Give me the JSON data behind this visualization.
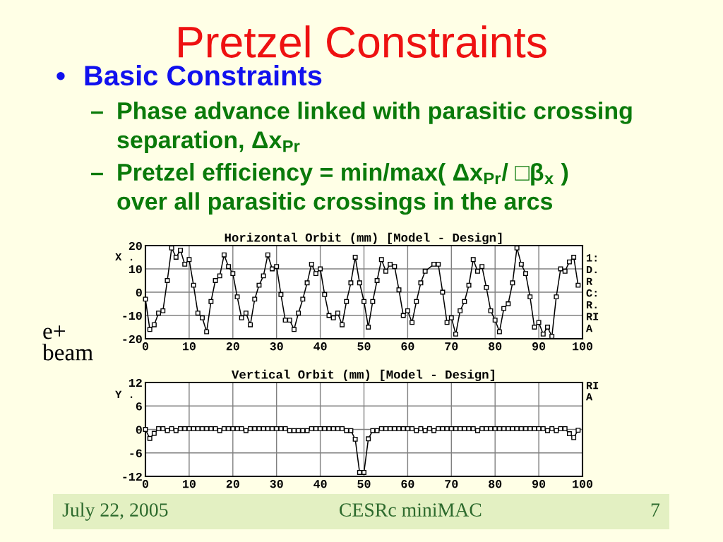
{
  "chart_data": [
    {
      "type": "other",
      "title": "Pretzel Constraints",
      "color": "#ee1111",
      "annotations": [
        "•",
        "Basic Constraints",
        "–",
        "Phase advance linked with parasitic crossing\nseparation, Δx$_{Pr}$",
        "–",
        "Pretzel efficiency = min/max( Δx$_{Pr}$/ □β$_{x}$ )\nover all parasitic crossings in the arcs",
        "e+\nbeam"
      ],
      "colors": [
        "#1111ee",
        "#1111ee",
        "#0a7a0a",
        "#0a7a0a",
        "#0a7a0a",
        "#0a7a0a",
        "#000000"
      ]
    },
    {
      "type": "line",
      "title": "Horizontal Orbit (mm) [Model - Design]",
      "ylabel": "X .",
      "color": "#000000",
      "marker": "square",
      "grid": true,
      "x": [
        0,
        1,
        2,
        3,
        4,
        5,
        6,
        7,
        8,
        9,
        10,
        11,
        12,
        13,
        14,
        15,
        16,
        17,
        18,
        19,
        20,
        21,
        22,
        23,
        24,
        25,
        26,
        27,
        28,
        29,
        30,
        31,
        32,
        33,
        34,
        35,
        36,
        37,
        38,
        39,
        40,
        41,
        42,
        43,
        44,
        45,
        46,
        47,
        48,
        49,
        50,
        51,
        52,
        53,
        54,
        55,
        56,
        57,
        58,
        59,
        60,
        61,
        62,
        63,
        64,
        66,
        67,
        68,
        69,
        70,
        71,
        72,
        73,
        74,
        75,
        76,
        77,
        78,
        79,
        80,
        81,
        82,
        83,
        84,
        85,
        86,
        87,
        88,
        89,
        90,
        91,
        92,
        93,
        94,
        95,
        96,
        97,
        98,
        99
      ],
      "values": [
        -3,
        -16,
        -14,
        -9,
        -8,
        5,
        19,
        15,
        18,
        12,
        14,
        3,
        -9,
        -11,
        -17,
        -4,
        5,
        7,
        16,
        11,
        8,
        -2,
        -11,
        -9,
        -14,
        -3,
        3,
        7,
        16,
        10,
        11,
        -1,
        -12,
        -12,
        -16,
        -9,
        -3,
        4,
        12,
        8,
        10,
        -1,
        -10,
        -11,
        -9,
        -14,
        -4,
        4,
        15,
        4,
        -4,
        -15,
        -4,
        5,
        14,
        9,
        12,
        11,
        1,
        -10,
        -8,
        -13,
        -4,
        4,
        9,
        12,
        12,
        0,
        -13,
        -11,
        -18,
        -8,
        -4,
        3,
        14,
        9,
        11,
        2,
        -8,
        -12,
        -17,
        -7,
        -5,
        4,
        19,
        12,
        8,
        -2,
        -15,
        -13,
        -18,
        -15,
        -19,
        -2,
        10,
        9,
        13,
        15,
        3
      ],
      "xlim": [
        0,
        100
      ],
      "xticks": [
        0,
        10,
        20,
        30,
        40,
        50,
        60,
        70,
        80,
        90,
        100
      ],
      "ylim": [
        -20,
        20
      ],
      "yticks": [
        -20,
        -10,
        0,
        10,
        20
      ],
      "annotations": [
        "1:",
        "D.",
        "R",
        "C:",
        "R.",
        "RI",
        "A"
      ]
    },
    {
      "type": "line",
      "title": "Vertical Orbit (mm) [Model - Design]",
      "ylabel": "Y .",
      "color": "#000000",
      "marker": "square",
      "grid": true,
      "x": [
        0,
        1,
        2,
        3,
        4,
        5,
        6,
        7,
        8,
        9,
        10,
        11,
        12,
        13,
        14,
        15,
        16,
        17,
        18,
        19,
        20,
        21,
        22,
        23,
        24,
        25,
        26,
        27,
        28,
        29,
        30,
        31,
        32,
        33,
        34,
        35,
        36,
        37,
        38,
        39,
        40,
        41,
        42,
        43,
        44,
        45,
        46,
        47,
        48,
        49,
        50,
        51,
        52,
        53,
        54,
        55,
        56,
        57,
        58,
        59,
        60,
        61,
        62,
        63,
        64,
        65,
        66,
        67,
        68,
        69,
        70,
        71,
        72,
        73,
        74,
        75,
        76,
        77,
        78,
        79,
        80,
        81,
        82,
        83,
        84,
        85,
        86,
        87,
        88,
        89,
        90,
        91,
        92,
        93,
        94,
        95,
        96,
        97,
        98,
        99
      ],
      "values": [
        0,
        -2.3,
        -1,
        0.2,
        0.2,
        -0.3,
        0.2,
        -0.3,
        0.2,
        0.2,
        0.2,
        0.2,
        0.2,
        0.2,
        0.2,
        0.2,
        0.2,
        -0.3,
        0.2,
        0.2,
        0.2,
        0.2,
        0.2,
        -0.3,
        0.2,
        0.2,
        0.2,
        0.2,
        0.2,
        0.2,
        0.2,
        0.2,
        0.2,
        -0.3,
        -0.3,
        -0.3,
        -0.3,
        -0.3,
        0.2,
        0.2,
        0.2,
        0.2,
        0.2,
        0.2,
        0.2,
        0.2,
        -0.3,
        -0.3,
        -2.5,
        -11,
        -11,
        -2.4,
        -0.3,
        -0.3,
        0.2,
        0.2,
        0.2,
        0.2,
        0.2,
        0.2,
        0.2,
        0.2,
        -0.3,
        0.2,
        -0.3,
        0.2,
        -0.3,
        0.2,
        0.2,
        0.2,
        0.2,
        0.2,
        0.2,
        0.2,
        0.2,
        0.2,
        -0.3,
        0.2,
        0.2,
        0.2,
        0.2,
        0.2,
        0.2,
        0.2,
        0.2,
        0.2,
        0.2,
        0.2,
        0.2,
        0.2,
        0.2,
        0.2,
        -0.3,
        0.2,
        -0.3,
        0.2,
        0.2,
        -1.1,
        -2.1,
        -0.2
      ],
      "xlim": [
        0,
        100
      ],
      "xticks": [
        0,
        10,
        20,
        30,
        40,
        50,
        60,
        70,
        80,
        90,
        100
      ],
      "ylim": [
        -12,
        12
      ],
      "yticks": [
        -12,
        -6,
        0,
        6,
        12
      ],
      "annotations": [
        "RI",
        "A"
      ]
    },
    {
      "type": "other",
      "annotations": [
        "July 22, 2005",
        "CESRc miniMAC",
        "7"
      ],
      "colors": [
        "#2d6a2d",
        "#2d6a2d",
        "#2d6a2d"
      ]
    }
  ]
}
